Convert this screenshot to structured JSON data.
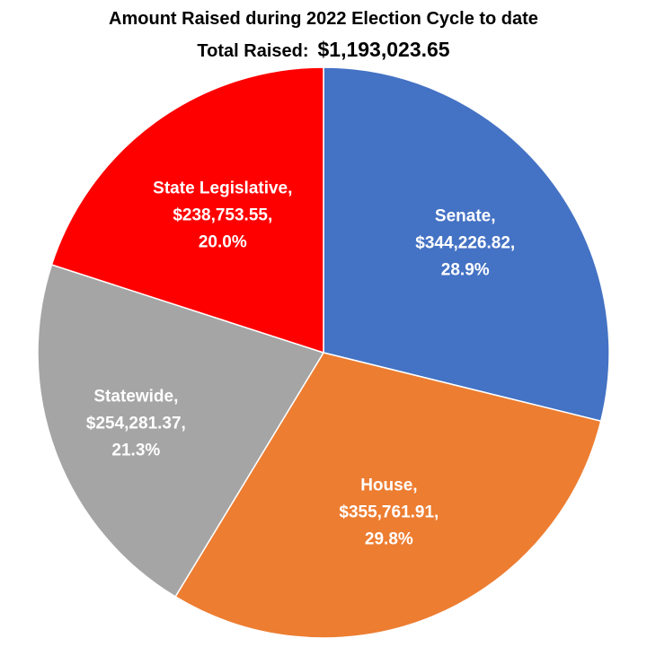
{
  "chart_data": {
    "type": "pie",
    "title": "Amount Raised during 2022 Election Cycle to date",
    "total_label": "Total Raised:",
    "total_value": "$1,193,023.65",
    "slices": [
      {
        "name": "Senate",
        "value": 344226.82,
        "value_label": "$344,226.82,",
        "percent": 28.9,
        "percent_label": "28.9%",
        "color": "#4472C4"
      },
      {
        "name": "House",
        "value": 355761.91,
        "value_label": "$355,761.91,",
        "percent": 29.8,
        "percent_label": "29.8%",
        "color": "#ED7D31"
      },
      {
        "name": "Statewide",
        "value": 254281.37,
        "value_label": "$254,281.37,",
        "percent": 21.3,
        "percent_label": "21.3%",
        "color": "#A5A5A5"
      },
      {
        "name": "State Legislative",
        "value": 238753.55,
        "value_label": "$238,753.55,",
        "percent": 20.0,
        "percent_label": "20.0%",
        "color": "#FF0000"
      }
    ]
  }
}
